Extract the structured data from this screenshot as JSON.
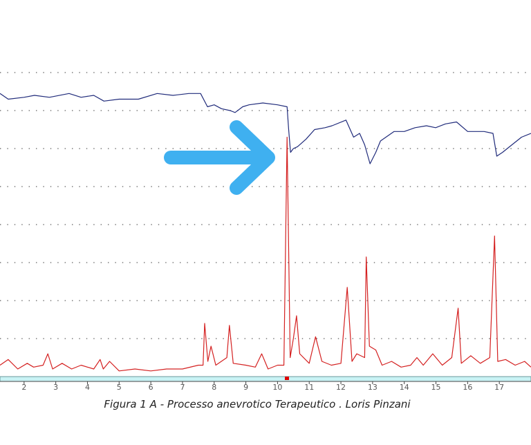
{
  "chart_data": {
    "type": "line",
    "caption": "Figura 1 A - Processo anevrotico Terapeutico . Loris Pinzani",
    "xlim": [
      1.24,
      18.0
    ],
    "xticks": [
      2,
      3,
      4,
      5,
      6,
      7,
      8,
      9,
      10,
      11,
      12,
      13,
      14,
      15,
      16,
      17
    ],
    "ylim": [
      0,
      9
    ],
    "grid_y": [
      1,
      2,
      3,
      4,
      5,
      6,
      7,
      8
    ],
    "grid": true,
    "series": [
      {
        "color": "#1f2a7a",
        "x": [
          1.24,
          1.5,
          2.0,
          2.33,
          2.8,
          3.42,
          3.8,
          4.2,
          4.52,
          5.0,
          5.61,
          6.2,
          6.7,
          7.2,
          7.57,
          7.79,
          8.0,
          8.23,
          8.5,
          8.66,
          8.9,
          9.1,
          9.54,
          10.0,
          10.3,
          10.35,
          10.41,
          10.5,
          10.63,
          10.9,
          11.17,
          11.5,
          11.72,
          12.16,
          12.4,
          12.59,
          12.75,
          12.92,
          13.1,
          13.25,
          13.68,
          14.0,
          14.34,
          14.7,
          14.99,
          15.3,
          15.65,
          16.0,
          16.52,
          16.8,
          16.92,
          17.1,
          17.4,
          17.7,
          18.0
        ],
        "values": [
          7.45,
          7.3,
          7.35,
          7.4,
          7.35,
          7.45,
          7.35,
          7.4,
          7.25,
          7.3,
          7.3,
          7.45,
          7.4,
          7.45,
          7.45,
          7.1,
          7.15,
          7.05,
          7.0,
          6.95,
          7.1,
          7.15,
          7.2,
          7.15,
          7.1,
          6.5,
          5.9,
          6.0,
          6.05,
          6.25,
          6.5,
          6.55,
          6.6,
          6.75,
          6.3,
          6.4,
          6.1,
          5.6,
          5.9,
          6.2,
          6.45,
          6.45,
          6.55,
          6.6,
          6.55,
          6.65,
          6.7,
          6.45,
          6.45,
          6.4,
          5.8,
          5.9,
          6.1,
          6.3,
          6.4
        ]
      },
      {
        "color": "#d42020",
        "x": [
          1.24,
          1.5,
          1.8,
          2.1,
          2.3,
          2.6,
          2.75,
          2.9,
          3.2,
          3.5,
          3.8,
          4.2,
          4.4,
          4.5,
          4.7,
          5.0,
          5.5,
          6.0,
          6.5,
          7.0,
          7.5,
          7.65,
          7.7,
          7.8,
          7.9,
          8.05,
          8.4,
          8.48,
          8.6,
          9.0,
          9.3,
          9.5,
          9.7,
          10.0,
          10.2,
          10.3,
          10.4,
          10.5,
          10.6,
          10.7,
          11.0,
          11.2,
          11.4,
          11.7,
          12.0,
          12.2,
          12.35,
          12.5,
          12.75,
          12.8,
          12.9,
          13.1,
          13.3,
          13.6,
          13.9,
          14.2,
          14.4,
          14.6,
          14.9,
          15.2,
          15.5,
          15.7,
          15.8,
          16.1,
          16.4,
          16.7,
          16.85,
          16.95,
          17.2,
          17.5,
          17.8,
          18.0
        ],
        "values": [
          0.3,
          0.45,
          0.2,
          0.35,
          0.25,
          0.3,
          0.6,
          0.2,
          0.35,
          0.2,
          0.3,
          0.2,
          0.45,
          0.2,
          0.4,
          0.15,
          0.2,
          0.15,
          0.2,
          0.2,
          0.3,
          0.3,
          1.4,
          0.4,
          0.8,
          0.3,
          0.5,
          1.35,
          0.35,
          0.3,
          0.25,
          0.6,
          0.2,
          0.3,
          0.3,
          6.3,
          0.5,
          1.0,
          1.6,
          0.6,
          0.35,
          1.05,
          0.4,
          0.3,
          0.35,
          2.35,
          0.4,
          0.6,
          0.5,
          3.15,
          0.8,
          0.7,
          0.3,
          0.4,
          0.25,
          0.3,
          0.5,
          0.3,
          0.6,
          0.3,
          0.5,
          1.8,
          0.35,
          0.55,
          0.35,
          0.5,
          3.7,
          0.4,
          0.45,
          0.3,
          0.4,
          0.25
        ]
      }
    ]
  }
}
